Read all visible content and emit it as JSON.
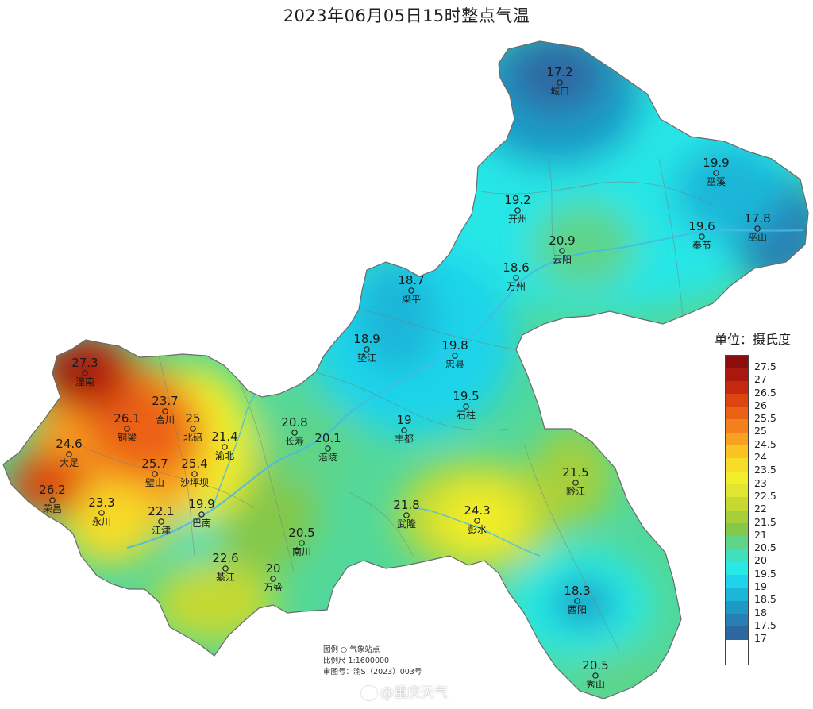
{
  "title": "2023年06月05日15时整点气温",
  "unit_label": "单位：摄氏度",
  "legend": [
    {
      "label": "27.5",
      "color": "#8b0d0d"
    },
    {
      "label": "27",
      "color": "#a8180f"
    },
    {
      "label": "26.5",
      "color": "#c52a10"
    },
    {
      "label": "26",
      "color": "#dd4410"
    },
    {
      "label": "25.5",
      "color": "#ec6214"
    },
    {
      "label": "25",
      "color": "#f3801c"
    },
    {
      "label": "24.5",
      "color": "#f8a120"
    },
    {
      "label": "24",
      "color": "#fbc224"
    },
    {
      "label": "23.5",
      "color": "#f7dc28"
    },
    {
      "label": "23",
      "color": "#f2ee2c"
    },
    {
      "label": "22.5",
      "color": "#dfe530"
    },
    {
      "label": "22",
      "color": "#c5d932"
    },
    {
      "label": "21.5",
      "color": "#a6cf3a"
    },
    {
      "label": "21",
      "color": "#84c84a"
    },
    {
      "label": "20.5",
      "color": "#5ed488"
    },
    {
      "label": "20",
      "color": "#3fe0bb"
    },
    {
      "label": "19.5",
      "color": "#28e9e6"
    },
    {
      "label": "19",
      "color": "#1fd4ea"
    },
    {
      "label": "18.5",
      "color": "#1cb6d8"
    },
    {
      "label": "18",
      "color": "#1f9ac6"
    },
    {
      "label": "17.5",
      "color": "#2680b3"
    },
    {
      "label": "17",
      "color": "#2d67a0"
    }
  ],
  "stations": [
    {
      "name": "城口",
      "value": "17.2"
    },
    {
      "name": "巫溪",
      "value": "19.9"
    },
    {
      "name": "开州",
      "value": "19.2"
    },
    {
      "name": "云阳",
      "value": "20.9"
    },
    {
      "name": "奉节",
      "value": "19.6"
    },
    {
      "name": "巫山",
      "value": "17.8"
    },
    {
      "name": "万州",
      "value": "18.6"
    },
    {
      "name": "梁平",
      "value": "18.7"
    },
    {
      "name": "垫江",
      "value": "18.9"
    },
    {
      "name": "忠县",
      "value": "19.8"
    },
    {
      "name": "石柱",
      "value": "19.5"
    },
    {
      "name": "丰都",
      "value": "19"
    },
    {
      "name": "潼南",
      "value": "27.3"
    },
    {
      "name": "合川",
      "value": "23.7"
    },
    {
      "name": "铜梁",
      "value": "26.1"
    },
    {
      "name": "北碚",
      "value": "25"
    },
    {
      "name": "渝北",
      "value": "21.4"
    },
    {
      "name": "长寿",
      "value": "20.8"
    },
    {
      "name": "涪陵",
      "value": "20.1"
    },
    {
      "name": "大足",
      "value": "24.6"
    },
    {
      "name": "璧山",
      "value": "25.7"
    },
    {
      "name": "沙坪坝",
      "value": "25.4"
    },
    {
      "name": "荣昌",
      "value": "26.2"
    },
    {
      "name": "永川",
      "value": "23.3"
    },
    {
      "name": "江津",
      "value": "22.1"
    },
    {
      "name": "巴南",
      "value": "19.9"
    },
    {
      "name": "綦江",
      "value": "22.6"
    },
    {
      "name": "万盛",
      "value": "20"
    },
    {
      "name": "南川",
      "value": "20.5"
    },
    {
      "name": "武隆",
      "value": "21.8"
    },
    {
      "name": "彭水",
      "value": "24.3"
    },
    {
      "name": "黔江",
      "value": "21.5"
    },
    {
      "name": "酉阳",
      "value": "18.3"
    },
    {
      "name": "秀山",
      "value": "20.5"
    }
  ],
  "map_info": {
    "legend_line": "图例   ○  气象站点",
    "scale_line": "比例尺   1:1600000",
    "approval_line": "审图号：渝S（2023）003号"
  },
  "watermark": "@重庆天气"
}
